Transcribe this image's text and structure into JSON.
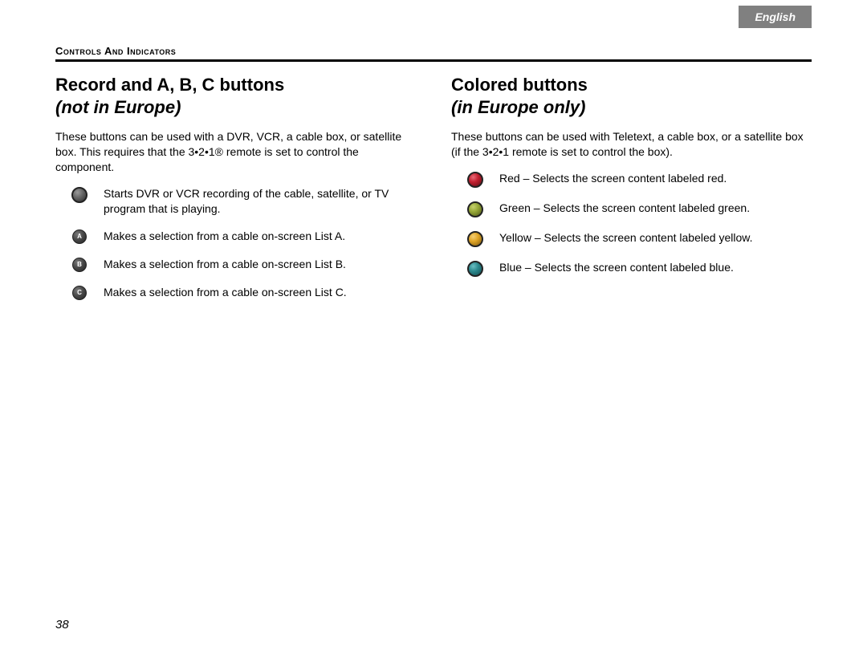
{
  "language_tab": "English",
  "section_label": "Controls And Indicators",
  "page_number": "38",
  "left": {
    "title_line1": "Record and A, B, C buttons",
    "title_line2": "not in Europe)",
    "intro": "These buttons can be used with a DVR, VCR, a cable box, or satellite box. This requires that the 3•2•1® remote is set to control the component.",
    "items": [
      {
        "icon_type": "dot",
        "fill": "#6a6a6a",
        "hi": "#9a9a9a",
        "lo": "#2a2a2a",
        "label": "",
        "desc": "Starts DVR or VCR recording of the cable, satellite, or TV program that is playing."
      },
      {
        "icon_type": "label",
        "label": "A",
        "desc": "Makes a selection from a cable on-screen List A."
      },
      {
        "icon_type": "label",
        "label": "B",
        "desc": "Makes a selection from a cable on-screen List B."
      },
      {
        "icon_type": "label",
        "label": "C",
        "desc": "Makes a selection from a cable on-screen List C."
      }
    ]
  },
  "right": {
    "title_line1": "Colored buttons",
    "title_line2": "in Europe only)",
    "intro": "These buttons can be used with Teletext, a cable box, or a satellite box (if the 3•2•1 remote is set to control the box).",
    "items": [
      {
        "icon_type": "dot",
        "fill": "#c22030",
        "hi": "#e86b78",
        "lo": "#5a0d14",
        "desc_prefix": "Red – ",
        "desc_body": "Selects the screen content labeled red."
      },
      {
        "icon_type": "dot",
        "fill": "#97a838",
        "hi": "#c6d26e",
        "lo": "#4a5516",
        "desc_prefix": "Green – ",
        "desc_body": "Selects the screen content labeled green."
      },
      {
        "icon_type": "dot",
        "fill": "#e0a526",
        "hi": "#f3cf76",
        "lo": "#7a5710",
        "desc_prefix": "Yellow – ",
        "desc_body": "Selects the screen content labeled yellow."
      },
      {
        "icon_type": "dot",
        "fill": "#2d8a8f",
        "hi": "#6bbfc3",
        "lo": "#124a4d",
        "desc_prefix": "Blue – ",
        "desc_body": "Selects the screen content labeled blue."
      }
    ]
  }
}
